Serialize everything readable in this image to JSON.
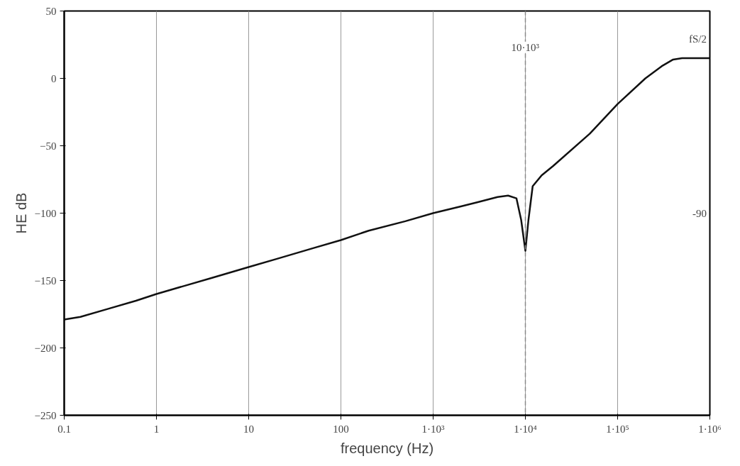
{
  "chart_data": {
    "type": "line",
    "xlabel": "frequency (Hz)",
    "ylabel": "HE dB",
    "log": "x",
    "grid": "x",
    "line_style": "solid",
    "marker": "none",
    "xlim": [
      0.1,
      1000000
    ],
    "ylim": [
      -250,
      50
    ],
    "xticks": [
      0.1,
      1,
      10,
      100,
      {
        "value": 1000,
        "label": "1·10³"
      },
      {
        "value": 10000,
        "label": "1·10⁴"
      },
      {
        "value": 100000,
        "label": "1·10⁵"
      },
      {
        "value": 1000000,
        "label": "1·10⁶"
      }
    ],
    "yticks": [
      50,
      0,
      -50,
      -100,
      -150,
      -200,
      -250
    ],
    "series": [
      {
        "color": "#111111",
        "x": [
          0.1,
          0.15,
          0.3,
          0.6,
          1,
          2,
          4,
          10,
          20,
          50,
          100,
          200,
          500,
          1000,
          2000,
          3000,
          5000,
          6500,
          8000,
          9000,
          10000,
          10800,
          12000,
          15000,
          20000,
          50000,
          100000,
          200000,
          300000,
          400000,
          500000,
          1000000
        ],
        "values": [
          -179,
          -177,
          -171,
          -165,
          -160,
          -154,
          -148,
          -140,
          -134,
          -126,
          -120,
          -113,
          -106,
          -100,
          -95,
          -92,
          -88,
          -87,
          -89,
          -105,
          -128,
          -105,
          -80,
          -72,
          -65,
          -41,
          -19,
          0,
          9,
          14,
          15,
          15
        ]
      }
    ],
    "ref_lines": [
      {
        "axis": "x",
        "value": 10000,
        "line_style": "dashed",
        "color": "#888888"
      }
    ],
    "annotations": [
      "10·10³",
      "fS/2",
      "-90"
    ]
  }
}
